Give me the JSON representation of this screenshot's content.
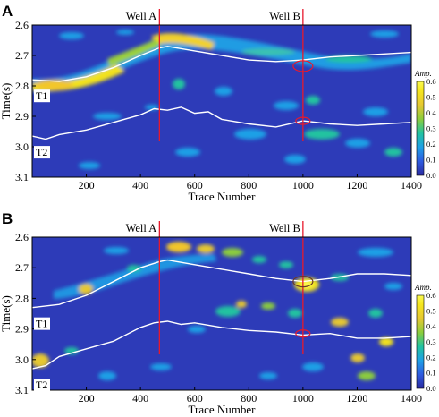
{
  "panels": [
    {
      "label": "A",
      "wells": [
        {
          "name": "Well A",
          "trace": 470
        },
        {
          "name": "Well B",
          "trace": 1000
        }
      ],
      "horizons": [
        {
          "name": "T1",
          "points": [
            [
              0,
              2.78
            ],
            [
              100,
              2.785
            ],
            [
              200,
              2.77
            ],
            [
              300,
              2.74
            ],
            [
              400,
              2.7
            ],
            [
              470,
              2.675
            ],
            [
              500,
              2.67
            ],
            [
              600,
              2.685
            ],
            [
              700,
              2.7
            ],
            [
              800,
              2.715
            ],
            [
              900,
              2.72
            ],
            [
              1000,
              2.715
            ],
            [
              1100,
              2.705
            ],
            [
              1200,
              2.7
            ],
            [
              1300,
              2.695
            ],
            [
              1400,
              2.69
            ]
          ]
        },
        {
          "name": "T2",
          "points": [
            [
              0,
              2.965
            ],
            [
              50,
              2.975
            ],
            [
              100,
              2.96
            ],
            [
              200,
              2.945
            ],
            [
              300,
              2.92
            ],
            [
              400,
              2.895
            ],
            [
              450,
              2.875
            ],
            [
              500,
              2.88
            ],
            [
              550,
              2.87
            ],
            [
              600,
              2.89
            ],
            [
              650,
              2.885
            ],
            [
              700,
              2.91
            ],
            [
              800,
              2.925
            ],
            [
              900,
              2.935
            ],
            [
              1000,
              2.915
            ],
            [
              1100,
              2.925
            ],
            [
              1200,
              2.93
            ],
            [
              1300,
              2.925
            ],
            [
              1400,
              2.92
            ]
          ]
        }
      ],
      "circles": [
        {
          "trace": 1000,
          "time": 2.735
        },
        {
          "trace": 1000,
          "time": 2.915
        }
      ]
    },
    {
      "label": "B",
      "wells": [
        {
          "name": "Well A",
          "trace": 470
        },
        {
          "name": "Well B",
          "trace": 1000
        }
      ],
      "horizons": [
        {
          "name": "T1",
          "points": [
            [
              0,
              2.83
            ],
            [
              100,
              2.82
            ],
            [
              200,
              2.79
            ],
            [
              300,
              2.745
            ],
            [
              400,
              2.7
            ],
            [
              470,
              2.68
            ],
            [
              500,
              2.675
            ],
            [
              600,
              2.69
            ],
            [
              700,
              2.705
            ],
            [
              800,
              2.72
            ],
            [
              900,
              2.735
            ],
            [
              1000,
              2.745
            ],
            [
              1100,
              2.735
            ],
            [
              1200,
              2.72
            ],
            [
              1300,
              2.72
            ],
            [
              1400,
              2.725
            ]
          ]
        },
        {
          "name": "T2",
          "points": [
            [
              0,
              3.03
            ],
            [
              50,
              3.02
            ],
            [
              100,
              2.99
            ],
            [
              200,
              2.965
            ],
            [
              300,
              2.94
            ],
            [
              400,
              2.895
            ],
            [
              450,
              2.88
            ],
            [
              500,
              2.875
            ],
            [
              550,
              2.885
            ],
            [
              600,
              2.88
            ],
            [
              700,
              2.895
            ],
            [
              800,
              2.905
            ],
            [
              900,
              2.91
            ],
            [
              1000,
              2.92
            ],
            [
              1100,
              2.915
            ],
            [
              1200,
              2.93
            ],
            [
              1300,
              2.93
            ],
            [
              1400,
              2.925
            ]
          ]
        }
      ],
      "circles": [
        {
          "trace": 1000,
          "time": 2.745
        },
        {
          "trace": 1000,
          "time": 2.915
        }
      ]
    }
  ],
  "x_axis": {
    "label": "Trace Number",
    "min": 0,
    "max": 1400,
    "ticks": [
      "200",
      "400",
      "600",
      "800",
      "1000",
      "1200",
      "1400"
    ]
  },
  "y_axis": {
    "label": "Time(s)",
    "min": 2.6,
    "max": 3.1,
    "ticks": [
      "2.6",
      "2.7",
      "2.8",
      "2.9",
      "3.0",
      "3.1"
    ]
  },
  "colorbar": {
    "label": "Amp.",
    "min": 0,
    "max": 0.6,
    "ticks": [
      "0.0",
      "0.1",
      "0.2",
      "0.3",
      "0.4",
      "0.5",
      "0.6"
    ]
  },
  "colors": {
    "background": "#2d3bb8",
    "well_line": "#e8192c",
    "horizon_line": "#ffffff"
  }
}
